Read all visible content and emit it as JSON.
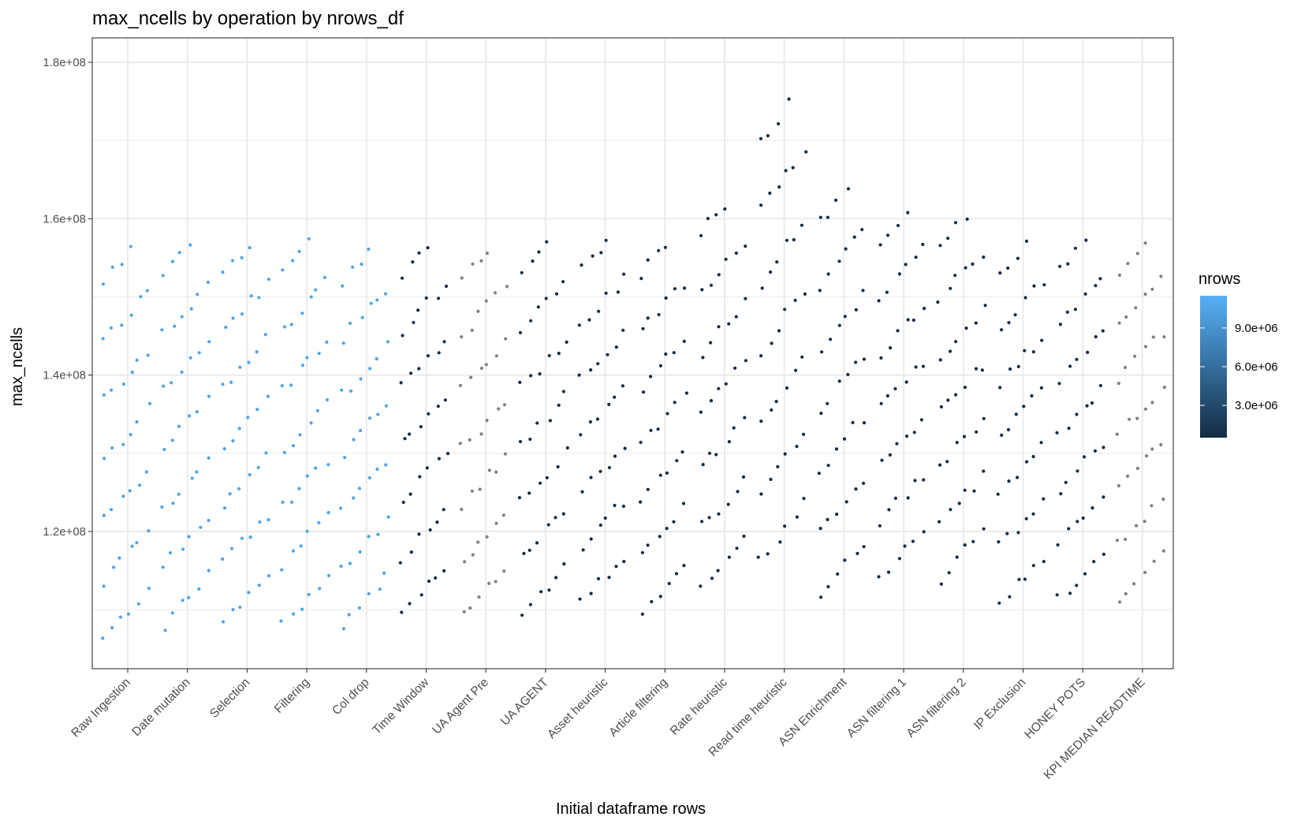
{
  "chart_data": {
    "type": "scatter",
    "title": "max_ncells by operation by nrows_df",
    "xlabel": "Initial dataframe rows",
    "ylabel": "max_ncells",
    "grid": true,
    "y_scale": "linear",
    "ylim": [
      10000000,
      182000000
    ],
    "y_ticks": [
      120000000,
      140000000,
      160000000,
      180000000
    ],
    "y_tick_labels": [
      "1.2e+08",
      "1.4e+08",
      "1.6e+08",
      "1.8e+08"
    ],
    "jitter": "points spread horizontally within each operation",
    "categories": [
      "Raw Ingestion",
      "Date mutation",
      "Selection",
      "Filtering",
      "Col drop",
      "Time Window",
      "UA Agent Pre",
      "UA AGENT",
      "Asset heuristic",
      "Article filtering",
      "Rate heuristic",
      "Read time heuristic",
      "ASN Enrichment",
      "ASN filtering 1",
      "ASN filtering 2",
      "IP Exclusion",
      "HONEY POTS",
      "KPI MEDIAN READTIME"
    ],
    "colour_legend": {
      "title": "nrows",
      "type": "continuous",
      "low_colour": "#132b43",
      "high_colour": "#56b1f7",
      "range": [
        500000,
        11500000
      ],
      "breaks": [
        3000000,
        6000000,
        9000000
      ],
      "break_labels": [
        "3.0e+06",
        "6.0e+06",
        "9.0e+06"
      ],
      "na_colour": "#808080"
    },
    "series": [
      {
        "category": "Raw Ingestion",
        "nrows": 10500000,
        "colour": "#4ea4e6",
        "min": 106000000,
        "max": 160000000,
        "n_points": 40
      },
      {
        "category": "Date mutation",
        "nrows": 10500000,
        "colour": "#4ea4e6",
        "min": 108000000,
        "max": 160500000,
        "n_points": 40
      },
      {
        "category": "Selection",
        "nrows": 10500000,
        "colour": "#4ea4e6",
        "min": 108500000,
        "max": 160500000,
        "n_points": 40
      },
      {
        "category": "Filtering",
        "nrows": 10500000,
        "colour": "#4ea4e6",
        "min": 108000000,
        "max": 160500000,
        "n_points": 40
      },
      {
        "category": "Col drop",
        "nrows": 10500000,
        "colour": "#4ea4e6",
        "min": 108000000,
        "max": 159500000,
        "n_points": 40
      },
      {
        "category": "Time Window",
        "nrows": 1000000,
        "colour": "#132b43",
        "min": 109500000,
        "max": 160000000,
        "n_points": 40
      },
      {
        "category": "UA Agent Pre",
        "nrows": null,
        "colour": "#808080",
        "min": 109000000,
        "max": 159700000,
        "n_points": 40
      },
      {
        "category": "UA AGENT",
        "nrows": 1000000,
        "colour": "#132b43",
        "min": 109500000,
        "max": 160000000,
        "n_points": 40
      },
      {
        "category": "Asset heuristic",
        "nrows": 1000000,
        "colour": "#132b43",
        "min": 111000000,
        "max": 160500000,
        "n_points": 40
      },
      {
        "category": "Article filtering",
        "nrows": 1000000,
        "colour": "#132b43",
        "min": 110000000,
        "max": 160000000,
        "n_points": 40
      },
      {
        "category": "Rate heuristic",
        "nrows": 1000000,
        "colour": "#132b43",
        "min": 113000000,
        "max": 165500000,
        "n_points": 40
      },
      {
        "category": "Read time heuristic",
        "nrows": 1000000,
        "colour": "#132b43",
        "min": 116000000,
        "max": 179000000,
        "n_points": 40
      },
      {
        "category": "ASN Enrichment",
        "nrows": 1000000,
        "colour": "#132b43",
        "min": 112000000,
        "max": 167500000,
        "n_points": 40
      },
      {
        "category": "ASN filtering 1",
        "nrows": 1000000,
        "colour": "#132b43",
        "min": 114000000,
        "max": 164500000,
        "n_points": 40
      },
      {
        "category": "ASN filtering 2",
        "nrows": 1000000,
        "colour": "#132b43",
        "min": 114000000,
        "max": 164000000,
        "n_points": 40
      },
      {
        "category": "IP Exclusion",
        "nrows": 1000000,
        "colour": "#132b43",
        "min": 111000000,
        "max": 160000000,
        "n_points": 40
      },
      {
        "category": "HONEY POTS",
        "nrows": 1000000,
        "colour": "#132b43",
        "min": 111500000,
        "max": 160500000,
        "n_points": 40
      },
      {
        "category": "KPI MEDIAN READTIME",
        "nrows": null,
        "colour": "#808080",
        "min": 111500000,
        "max": 160500000,
        "n_points": 40
      }
    ]
  }
}
